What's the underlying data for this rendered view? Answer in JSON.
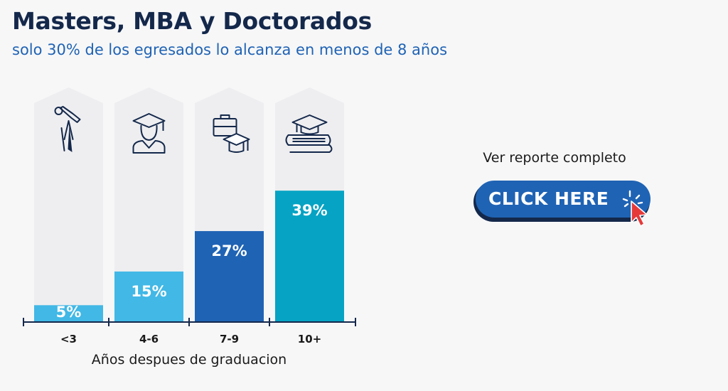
{
  "header": {
    "title": "Masters, MBA y Doctorados",
    "subtitle": "solo 30% de los egresados lo alcanza en menos de 8 años"
  },
  "cta": {
    "label": "Ver reporte completo",
    "button_text": "CLICK HERE"
  },
  "colors": {
    "bar_light": "#41b8e6",
    "bar_dark": "#1f63b4",
    "bar_teal": "#06a3c4",
    "background_column": "#eeeef0",
    "icon": "#14284b",
    "cta_button": "#1f63b4",
    "cta_cursor": "#e63a3a"
  },
  "chart_data": {
    "type": "bar",
    "categories": [
      "<3",
      "4-6",
      "7-9",
      "10+"
    ],
    "values": [
      5,
      15,
      27,
      39
    ],
    "data_labels": [
      "5%",
      "15%",
      "27%",
      "39%"
    ],
    "icons": [
      "diploma-icon",
      "graduate-icon",
      "briefcase-cap-icon",
      "books-cap-icon"
    ],
    "xlabel": "Años despues de graduacion",
    "ylabel": "",
    "ylim": [
      0,
      100
    ],
    "grid": false,
    "legend": "none"
  }
}
